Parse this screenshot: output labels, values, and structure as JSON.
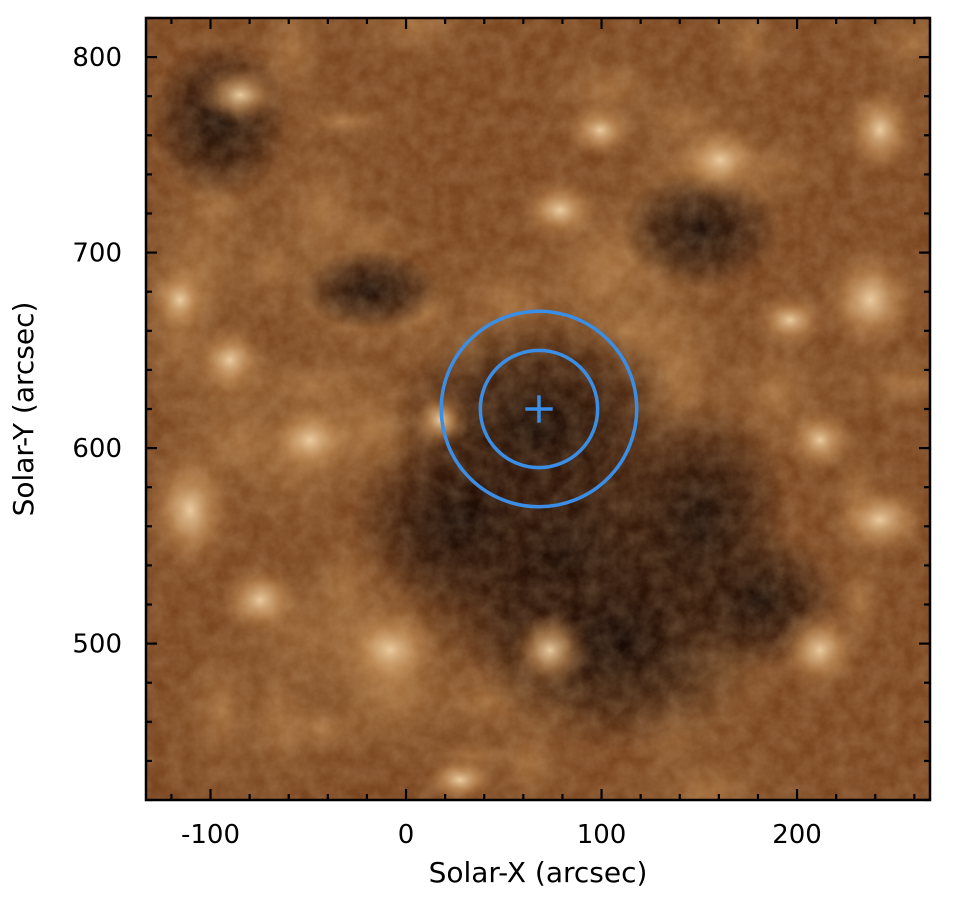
{
  "chart_data": {
    "type": "heatmap",
    "xlabel": "Solar-X (arcsec)",
    "ylabel": "Solar-Y (arcsec)",
    "xlim": [
      -133,
      268
    ],
    "ylim": [
      420,
      820
    ],
    "x_ticks": [
      {
        "value": -100,
        "label": "-100"
      },
      {
        "value": 0,
        "label": "0"
      },
      {
        "value": 100,
        "label": "100"
      },
      {
        "value": 200,
        "label": "200"
      }
    ],
    "y_ticks": [
      {
        "value": 500,
        "label": "500"
      },
      {
        "value": 600,
        "label": "600"
      },
      {
        "value": 700,
        "label": "700"
      },
      {
        "value": 800,
        "label": "800"
      }
    ],
    "x_minor_step": 20,
    "y_minor_step": 20,
    "colormap": "sdoaia171-like copper",
    "colors": {
      "dark": "#1a0a02",
      "mid": "#6e3f17",
      "bright": "#d4a36a",
      "highlight": "#f0d2a6",
      "overlay": "#3a8ee6"
    },
    "overlays": [
      {
        "type": "circle",
        "name": "inner-circle",
        "center": [
          68,
          620
        ],
        "radius": 30
      },
      {
        "type": "circle",
        "name": "outer-circle",
        "center": [
          68,
          620
        ],
        "radius": 50
      },
      {
        "type": "cross",
        "name": "center-marker",
        "center": [
          68,
          620
        ],
        "size": 7
      }
    ]
  }
}
